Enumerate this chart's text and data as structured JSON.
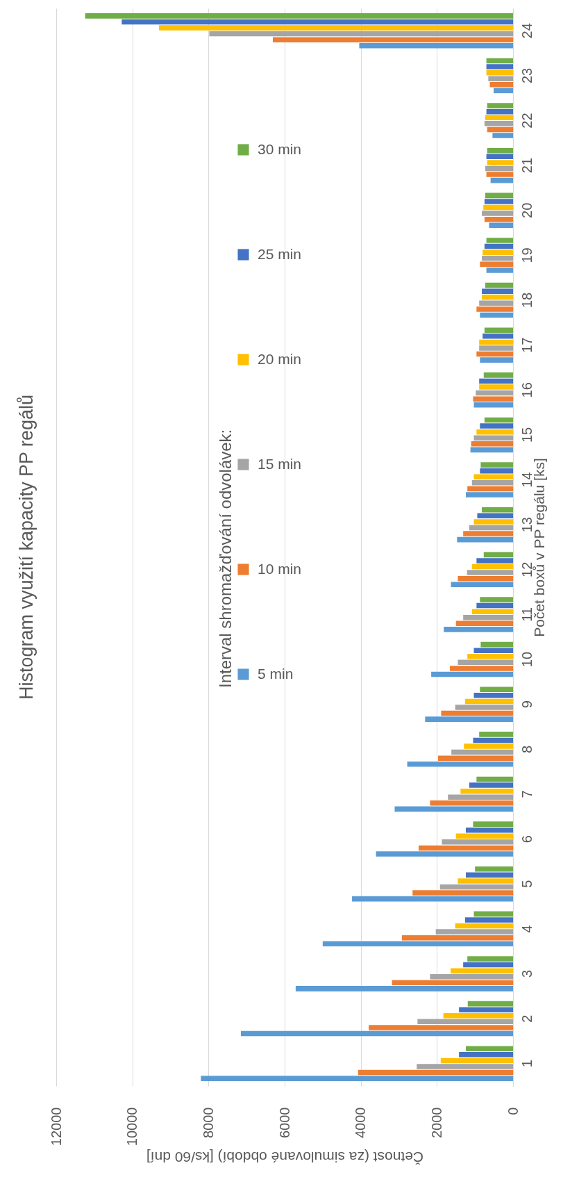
{
  "chart_data": {
    "type": "bar",
    "orientation": "horizontal",
    "title": "Histogram využití kapacity PP regálů",
    "xlabel": "Četnost (za simulované období) [ks/60 dní]",
    "ylabel": "Počet boxů v PP regálu [ks]",
    "legend_title": "Interval shromažďování odvolávek:",
    "categories": [
      "24",
      "23",
      "22",
      "21",
      "20",
      "19",
      "18",
      "17",
      "16",
      "15",
      "14",
      "13",
      "12",
      "11",
      "10",
      "9",
      "8",
      "7",
      "6",
      "5",
      "4",
      "3",
      "2",
      "1"
    ],
    "series": [
      {
        "name": "5 min",
        "color": "#5b9bd5",
        "values": [
          4040,
          510,
          540,
          590,
          630,
          700,
          870,
          870,
          1030,
          1120,
          1240,
          1470,
          1630,
          1820,
          2150,
          2310,
          2780,
          3110,
          3600,
          4230,
          5000,
          5710,
          7150,
          8200
        ]
      },
      {
        "name": "10 min",
        "color": "#ed7d31",
        "values": [
          6310,
          610,
          680,
          700,
          750,
          870,
          960,
          960,
          1050,
          1100,
          1200,
          1310,
          1450,
          1500,
          1660,
          1890,
          1970,
          2180,
          2480,
          2640,
          2920,
          3180,
          3790,
          4070
        ]
      },
      {
        "name": "15 min",
        "color": "#a5a5a5",
        "values": [
          7980,
          650,
          750,
          730,
          820,
          820,
          890,
          890,
          980,
          1030,
          1080,
          1150,
          1210,
          1310,
          1450,
          1520,
          1620,
          1710,
          1870,
          1920,
          2030,
          2180,
          2510,
          2530
        ]
      },
      {
        "name": "20 min",
        "color": "#ffc000",
        "values": [
          9300,
          700,
          730,
          680,
          780,
          800,
          820,
          890,
          890,
          960,
          1030,
          1030,
          1080,
          1080,
          1200,
          1260,
          1290,
          1380,
          1500,
          1450,
          1520,
          1640,
          1830,
          1900
        ]
      },
      {
        "name": "25 min",
        "color": "#4472c4",
        "values": [
          10280,
          700,
          700,
          700,
          750,
          750,
          820,
          800,
          890,
          870,
          870,
          940,
          960,
          960,
          1030,
          1030,
          1050,
          1150,
          1240,
          1240,
          1260,
          1310,
          1420,
          1420
        ]
      },
      {
        "name": "30 min",
        "color": "#70ad47",
        "values": [
          11240,
          700,
          680,
          680,
          730,
          700,
          730,
          750,
          770,
          750,
          850,
          820,
          770,
          870,
          850,
          870,
          890,
          960,
          1050,
          1000,
          1030,
          1200,
          1190,
          1240
        ]
      }
    ],
    "xlim": [
      12000,
      0
    ],
    "xticks": [
      12000,
      10000,
      8000,
      6000,
      4000,
      2000,
      0
    ],
    "grid": "x",
    "legend": "left"
  }
}
